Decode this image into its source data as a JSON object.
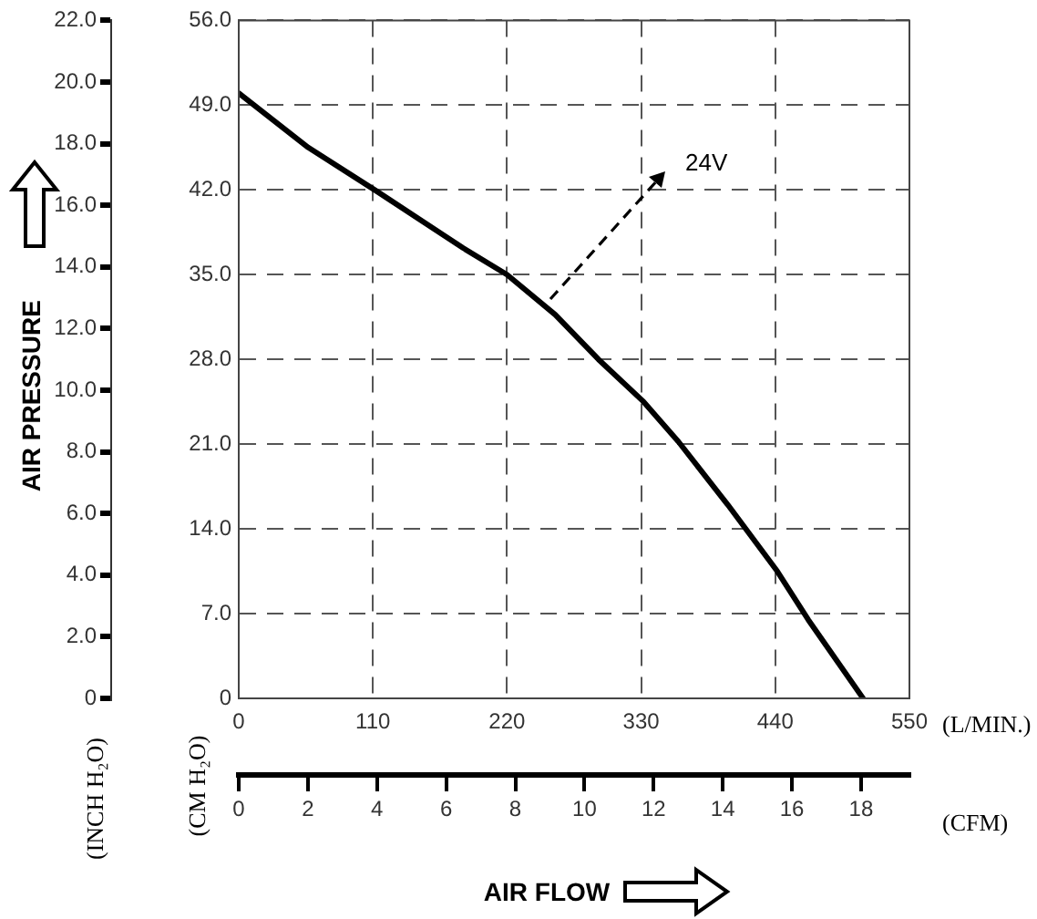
{
  "chart_data": {
    "type": "line",
    "x2label": "AIR FLOW",
    "y2label": "AIR PRESSURE",
    "x": [
      0,
      57,
      113,
      184,
      220,
      259.5,
      295,
      332,
      360.6,
      401,
      441.6,
      467,
      512
    ],
    "series": [
      {
        "color": "#000000",
        "values": [
          50.0,
          45.5,
          41.9,
          37.2,
          35.0,
          31.7,
          28.0,
          24.5,
          21.2,
          16.0,
          10.5,
          6.5,
          0
        ]
      }
    ],
    "xlim": [
      0,
      550
    ],
    "xticks": [
      0,
      110,
      220,
      330,
      440,
      550
    ],
    "x2lim": [
      0,
      19.4
    ],
    "x2ticks": [
      0,
      2,
      4,
      6,
      8,
      10,
      12,
      14,
      16,
      18
    ],
    "ylim": [
      0,
      56
    ],
    "yticks": [
      0,
      {
        "value": 7,
        "label": "7.0"
      },
      {
        "value": 14,
        "label": "14.0"
      },
      {
        "value": 21,
        "label": "21.0"
      },
      {
        "value": 28,
        "label": "28.0"
      },
      {
        "value": 35,
        "label": "35.0"
      },
      {
        "value": 42,
        "label": "42.0"
      },
      {
        "value": 49,
        "label": "49.0"
      },
      {
        "value": 56,
        "label": "56.0"
      }
    ],
    "y2lim": [
      0,
      22
    ],
    "y2ticks": [
      0,
      {
        "value": 2,
        "label": "2.0"
      },
      {
        "value": 4,
        "label": "4.0"
      },
      {
        "value": 6,
        "label": "6.0"
      },
      {
        "value": 8,
        "label": "8.0"
      },
      {
        "value": 10,
        "label": "10.0"
      },
      {
        "value": 12,
        "label": "12.0"
      },
      {
        "value": 14,
        "label": "14.0"
      },
      {
        "value": 16,
        "label": "16.0"
      },
      {
        "value": 18,
        "label": "18.0"
      },
      {
        "value": 20,
        "label": "20.0"
      },
      {
        "value": 22,
        "label": "22.0"
      }
    ],
    "annotations": [
      "(L/MIN.)",
      "(CFM)",
      "(INCH H₂O)",
      "(CM H₂O)",
      {
        "text": "24V",
        "x": 255,
        "y": 33
      }
    ],
    "grid": true,
    "marker": "none",
    "line_style": "solid"
  }
}
